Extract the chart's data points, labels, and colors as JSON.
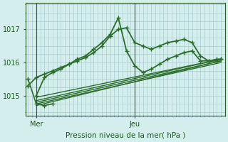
{
  "bg_color": "#d4eded",
  "grid_color": "#a8cccc",
  "line_color": "#2d6e2d",
  "marker_color": "#2d6e2d",
  "xlabel": "Pression niveau de la mer( hPa )",
  "xlabel_color": "#1a5c1a",
  "tick_color": "#1a5c1a",
  "spine_color": "#2a5a2a",
  "ylim": [
    1014.4,
    1017.8
  ],
  "yticks": [
    1015,
    1016,
    1017
  ],
  "figsize": [
    3.2,
    2.0
  ],
  "dpi": 100,
  "series": [
    {
      "x": [
        0,
        2,
        4,
        6,
        8,
        10,
        12,
        14,
        16,
        18,
        20,
        22,
        24,
        26,
        28,
        30,
        32,
        34,
        36,
        38,
        40,
        42,
        44,
        46,
        47
      ],
      "y": [
        1015.3,
        1015.55,
        1015.65,
        1015.75,
        1015.85,
        1015.95,
        1016.05,
        1016.15,
        1016.3,
        1016.5,
        1016.8,
        1017.0,
        1017.05,
        1016.6,
        1016.5,
        1016.4,
        1016.5,
        1016.6,
        1016.65,
        1016.7,
        1016.6,
        1016.2,
        1016.05,
        1016.1,
        1016.1
      ],
      "lw": 1.3,
      "marker": "+"
    },
    {
      "x": [
        2,
        4,
        6,
        8,
        10,
        12,
        14,
        16,
        18,
        20,
        22,
        24,
        26,
        28,
        30,
        32,
        34,
        36,
        38,
        40,
        42,
        44,
        46,
        47
      ],
      "y": [
        1015.0,
        1015.55,
        1015.7,
        1015.8,
        1015.95,
        1016.1,
        1016.2,
        1016.4,
        1016.6,
        1016.85,
        1017.35,
        1016.35,
        1015.9,
        1015.7,
        1015.8,
        1015.95,
        1016.1,
        1016.2,
        1016.3,
        1016.35,
        1016.05,
        1016.05,
        1016.05,
        1016.1
      ],
      "lw": 1.3,
      "marker": "+"
    },
    {
      "x": [
        2,
        47
      ],
      "y": [
        1014.7,
        1016.05
      ],
      "lw": 1.0,
      "marker": null
    },
    {
      "x": [
        2,
        47
      ],
      "y": [
        1014.75,
        1016.0
      ],
      "lw": 1.0,
      "marker": null
    },
    {
      "x": [
        2,
        47
      ],
      "y": [
        1014.8,
        1016.05
      ],
      "lw": 1.0,
      "marker": null
    },
    {
      "x": [
        2,
        47
      ],
      "y": [
        1014.85,
        1016.1
      ],
      "lw": 1.0,
      "marker": null
    },
    {
      "x": [
        2,
        47
      ],
      "y": [
        1014.95,
        1016.1
      ],
      "lw": 1.0,
      "marker": null
    },
    {
      "x": [
        0,
        2,
        4,
        6
      ],
      "y": [
        1015.5,
        1014.75,
        1014.7,
        1014.75
      ],
      "lw": 1.2,
      "marker": "+"
    }
  ],
  "x_mer": 2,
  "x_jeu": 26,
  "xlim": [
    -0.5,
    48
  ]
}
